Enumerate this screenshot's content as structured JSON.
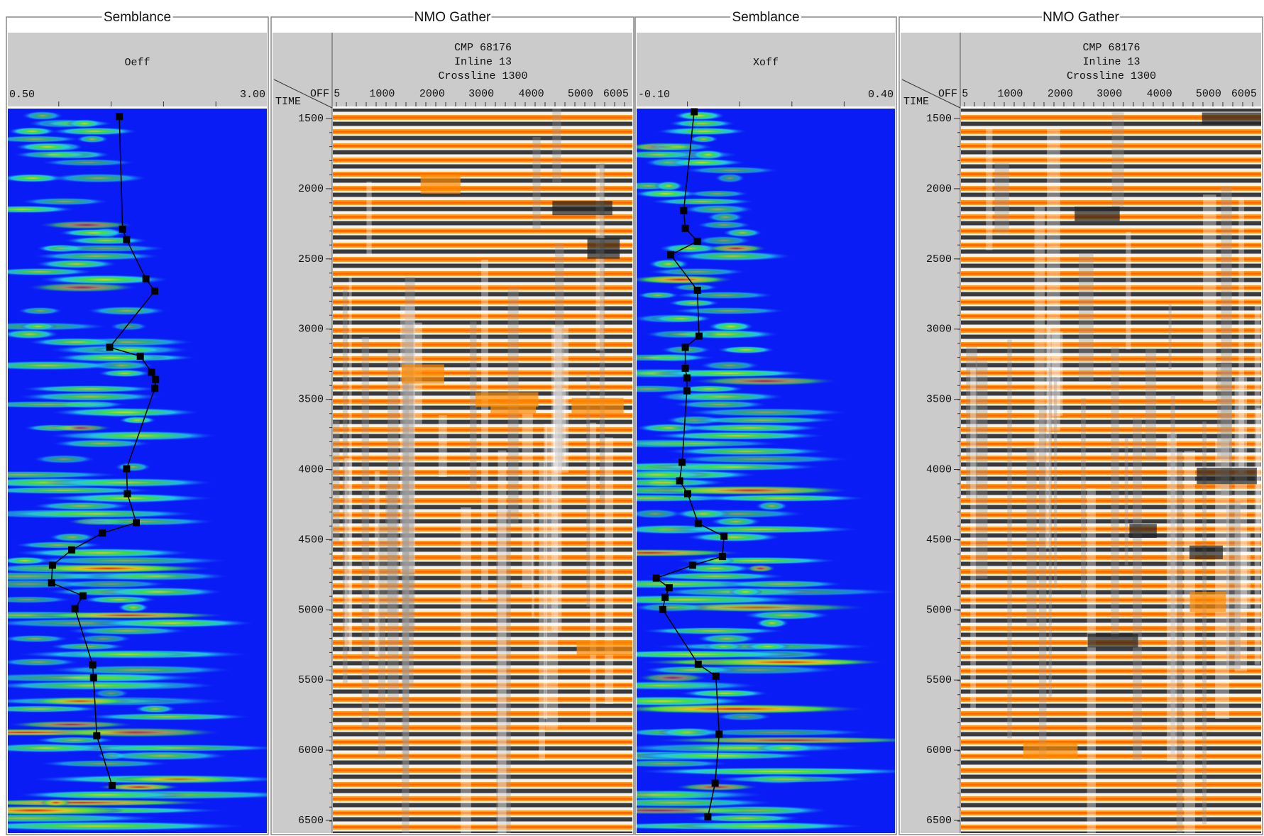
{
  "panels": [
    {
      "title": "Semblance",
      "header": "Oeff",
      "axis_min": "0.50",
      "axis_max": "3.00"
    },
    {
      "title": "NMO Gather",
      "header_lines": [
        "CMP 68176",
        "Inline 13",
        "Crossline 1300"
      ],
      "off_label": "OFF",
      "time_label": "TIME",
      "offset_ticks": [
        "5",
        "1000",
        "2000",
        "3000",
        "4000",
        "5000",
        "6005"
      ],
      "time_ticks": [
        "1500",
        "2000",
        "2500",
        "3000",
        "3500",
        "4000",
        "4500",
        "5000",
        "5500",
        "6000",
        "6500"
      ]
    },
    {
      "title": "Semblance",
      "header": "Xoff",
      "axis_min": "-0.10",
      "axis_max": "0.40"
    },
    {
      "title": "NMO Gather",
      "header_lines": [
        "CMP 68176",
        "Inline 13",
        "Crossline 1300"
      ],
      "off_label": "OFF",
      "time_label": "TIME",
      "offset_ticks": [
        "5",
        "1000",
        "2000",
        "3000",
        "4000",
        "5000",
        "6005"
      ],
      "time_ticks": [
        "1500",
        "2000",
        "2500",
        "3000",
        "3500",
        "4000",
        "4500",
        "5000",
        "5500",
        "6000",
        "6500"
      ]
    }
  ]
}
